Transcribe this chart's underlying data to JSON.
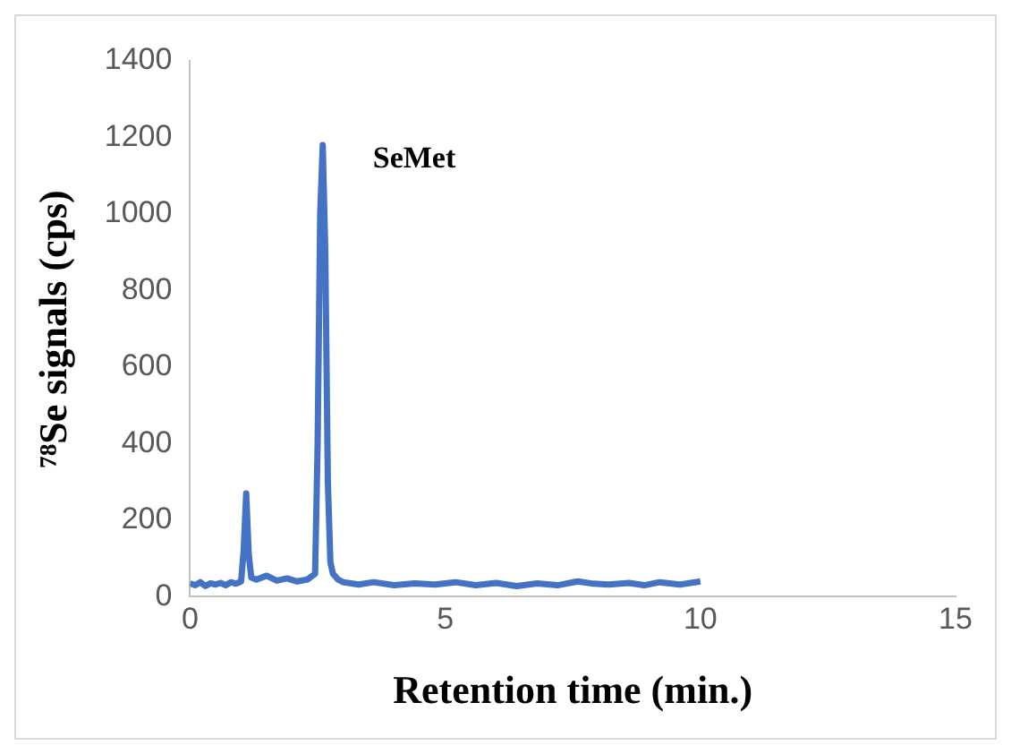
{
  "chart_data": {
    "type": "line",
    "xlabel": "Retention time (min.)",
    "ylabel": "⁷⁸Se signals (cps)",
    "x": [
      0,
      0.1,
      0.2,
      0.3,
      0.4,
      0.5,
      0.6,
      0.7,
      0.8,
      0.9,
      1.0,
      1.05,
      1.1,
      1.15,
      1.2,
      1.3,
      1.5,
      1.7,
      1.9,
      2.1,
      2.3,
      2.45,
      2.5,
      2.55,
      2.6,
      2.65,
      2.7,
      2.75,
      2.8,
      2.9,
      3.0,
      3.3,
      3.6,
      4.0,
      4.4,
      4.8,
      5.2,
      5.6,
      6.0,
      6.4,
      6.8,
      7.2,
      7.6,
      7.9,
      8.2,
      8.6,
      8.9,
      9.2,
      9.6,
      10.0
    ],
    "series": [
      {
        "color": "#4472c4",
        "values": [
          35,
          30,
          38,
          28,
          35,
          32,
          36,
          30,
          38,
          34,
          40,
          120,
          270,
          110,
          50,
          45,
          55,
          42,
          48,
          40,
          45,
          60,
          400,
          1000,
          1180,
          900,
          300,
          90,
          60,
          45,
          38,
          32,
          38,
          30,
          35,
          32,
          38,
          30,
          36,
          28,
          35,
          30,
          40,
          34,
          32,
          36,
          30,
          38,
          32,
          40
        ]
      }
    ],
    "xlim": [
      0,
      15
    ],
    "xticks": [
      0,
      5,
      10,
      15
    ],
    "ylim": [
      0,
      1400
    ],
    "yticks": [
      0,
      200,
      400,
      600,
      800,
      1000,
      1200,
      1400
    ],
    "grid": false,
    "legend": false,
    "marker": "none",
    "line_style": "solid",
    "annotations": [
      {
        "text": "SeMet",
        "x": 2.6,
        "y": 1180
      }
    ]
  }
}
